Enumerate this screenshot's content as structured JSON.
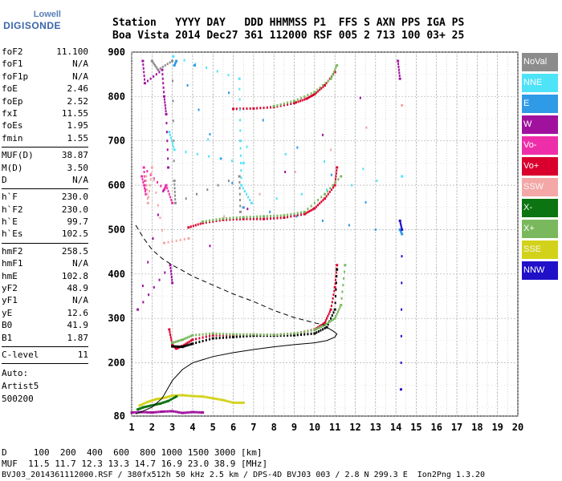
{
  "logo": {
    "line1": "Lowell",
    "line2": "DIGISONDE"
  },
  "header": {
    "row1": "Station   YYYY DAY   DDD HHMMSS P1  FFS S AXN PPS IGA PS",
    "row2": "Boa Vista 2014 Dec27 361 112000 RSF 005 2 713 100 03+ 25"
  },
  "parameters": [
    [
      {
        "k": "foF2",
        "v": "11.100"
      },
      {
        "k": "foF1",
        "v": "N/A"
      },
      {
        "k": "foF1p",
        "v": "N/A"
      },
      {
        "k": "foE",
        "v": "2.46"
      },
      {
        "k": "foEp",
        "v": "2.52"
      },
      {
        "k": "fxI",
        "v": "11.55"
      },
      {
        "k": "foEs",
        "v": "1.95"
      },
      {
        "k": "fmin",
        "v": "1.55"
      }
    ],
    [
      {
        "k": "MUF(D)",
        "v": "38.87"
      },
      {
        "k": "M(D)",
        "v": "3.50"
      },
      {
        "k": "D",
        "v": "N/A"
      }
    ],
    [
      {
        "k": "h`F",
        "v": "230.0"
      },
      {
        "k": "h`F2",
        "v": "230.0"
      },
      {
        "k": "h`E",
        "v": "99.7"
      },
      {
        "k": "h`Es",
        "v": "102.5"
      }
    ],
    [
      {
        "k": "hmF2",
        "v": "258.5"
      },
      {
        "k": "hmF1",
        "v": "N/A"
      },
      {
        "k": "hmE",
        "v": "102.8"
      },
      {
        "k": "yF2",
        "v": "48.9"
      },
      {
        "k": "yF1",
        "v": "N/A"
      },
      {
        "k": "yE",
        "v": "12.6"
      },
      {
        "k": "B0",
        "v": "41.9"
      },
      {
        "k": "B1",
        "v": "1.87"
      }
    ],
    [
      {
        "k": "C-level",
        "v": "11"
      }
    ]
  ],
  "auto": {
    "label": "Auto:",
    "line2": "Artist5",
    "line3": "500200"
  },
  "legend": [
    {
      "label": "NoVal",
      "color": "#8c8c8c"
    },
    {
      "label": "NNE",
      "color": "#4fe3f7"
    },
    {
      "label": "E",
      "color": "#2f9ae6"
    },
    {
      "label": "W",
      "color": "#a0129e"
    },
    {
      "label": "Vo-",
      "color": "#ee2ea8"
    },
    {
      "label": "Vo+",
      "color": "#d9002e"
    },
    {
      "label": "SSW",
      "color": "#f4a7a7"
    },
    {
      "label": "X-",
      "color": "#0c7410"
    },
    {
      "label": "X+",
      "color": "#7ab85e"
    },
    {
      "label": "SSE",
      "color": "#d2d21a"
    },
    {
      "label": "NNW",
      "color": "#2010c8"
    }
  ],
  "footer": {
    "line1": "D     100  200  400  600  800 1000 1500 3000 [km]",
    "line2": "MUF  11.5 11.7 12.3 13.3 14.7 16.9 23.0 38.9 [MHz]",
    "line3": "BVJ03_2014361112000.RSF / 380fx512h 50 kHz 2.5 km / DPS-4D BVJ03 003 / 2.8 N 299.3 E  Ion2Png 1.3.20"
  },
  "chart_data": {
    "type": "scatter",
    "xlim": [
      1,
      20
    ],
    "ylim": [
      80,
      900
    ],
    "x_ticks": [
      1,
      2,
      3,
      4,
      5,
      6,
      7,
      8,
      9,
      10,
      11,
      12,
      13,
      14,
      15,
      16,
      17,
      18,
      19,
      20
    ],
    "y_ticks": [
      80,
      200,
      300,
      400,
      500,
      600,
      700,
      800,
      900
    ],
    "series": [
      {
        "color": "#d9002e",
        "x": [
          2.85,
          3.0,
          3.2,
          3.5,
          4.0,
          5.0,
          6.0,
          7.0,
          8.0,
          9.0,
          10.0,
          10.5,
          10.8,
          11.0,
          11.1
        ],
        "y": [
          275,
          240,
          232,
          238,
          252,
          262,
          263,
          262,
          263,
          265,
          275,
          290,
          320,
          370,
          420
        ]
      },
      {
        "color": "#000000",
        "x": [
          3.0,
          3.5,
          4.0,
          5.0,
          6.0,
          7.0,
          8.0,
          9.0,
          10.0,
          10.6,
          11.0,
          11.1
        ],
        "y": [
          237,
          236,
          243,
          255,
          258,
          261,
          261,
          262,
          266,
          280,
          320,
          410
        ]
      },
      {
        "color": "#7ab85e",
        "x": [
          3.0,
          3.5,
          4.0,
          5.0,
          6.0,
          7.0,
          8.0,
          9.0,
          10.0,
          10.5,
          11.0,
          11.3,
          11.5
        ],
        "y": [
          245,
          252,
          262,
          266,
          264,
          264,
          263,
          266,
          274,
          285,
          300,
          330,
          420
        ]
      },
      {
        "color": "#d9002e",
        "x": [
          3.8,
          4.5,
          5.5,
          6.5,
          7.5,
          8.5,
          9.5,
          10.0,
          10.5,
          11.0,
          11.1
        ],
        "y": [
          505,
          515,
          522,
          524,
          524,
          527,
          535,
          548,
          570,
          600,
          640
        ]
      },
      {
        "color": "#7ab85e",
        "x": [
          4.5,
          5.5,
          6.5,
          7.5,
          8.5,
          9.5,
          10.5,
          11.3
        ],
        "y": [
          518,
          525,
          528,
          530,
          532,
          540,
          580,
          620
        ]
      },
      {
        "color": "#d9002e",
        "x": [
          6.0,
          7.0,
          8.0,
          9.0,
          9.6,
          10.0,
          10.5,
          11.0
        ],
        "y": [
          772,
          773,
          776,
          785,
          795,
          805,
          825,
          855
        ]
      },
      {
        "color": "#7ab85e",
        "x": [
          8.0,
          9.0,
          10.0,
          10.8,
          11.1
        ],
        "y": [
          778,
          790,
          810,
          840,
          870
        ]
      },
      {
        "color": "#ee2ea8",
        "x": [
          1.5,
          1.7,
          1.6,
          2.6,
          2.7,
          3.0
        ],
        "y": [
          620,
          580,
          640,
          590,
          600,
          560
        ]
      },
      {
        "color": "#f4a7a7",
        "x": [
          1.7,
          1.8,
          2.0,
          2.6,
          3.8,
          14.3
        ],
        "y": [
          620,
          560,
          640,
          470,
          480,
          780
        ]
      },
      {
        "color": "#a0129e",
        "x": [
          1.55,
          1.65,
          2.5,
          2.6,
          2.7,
          2.8,
          1.3,
          2.9,
          3.0,
          14.1,
          14.2
        ],
        "y": [
          880,
          830,
          860,
          800,
          760,
          640,
          320,
          420,
          380,
          880,
          840
        ]
      },
      {
        "color": "#4fe3f7",
        "x": [
          3.05,
          6.3,
          6.35,
          6.4,
          6.9,
          14.3,
          2.85,
          3.1,
          6.5
        ],
        "y": [
          890,
          840,
          700,
          600,
          560,
          620,
          720,
          680,
          650
        ]
      },
      {
        "color": "#2f9ae6",
        "x": [
          3.1,
          3.2,
          6.5,
          14.3,
          14.2,
          4.1
        ],
        "y": [
          870,
          880,
          550,
          490,
          500,
          870
        ]
      },
      {
        "color": "#8c8c8c",
        "x": [
          2.0,
          2.3,
          3.0,
          3.1,
          3.15,
          6.3,
          6.35
        ],
        "y": [
          880,
          860,
          880,
          610,
          560,
          620,
          540
        ]
      },
      {
        "color": "#2010c8",
        "x": [
          14.2,
          14.3,
          14.25
        ],
        "y": [
          520,
          500,
          140
        ]
      },
      {
        "color": "#d2d21a",
        "x": [
          1.4,
          1.8,
          2.2,
          2.6,
          3.0,
          3.5,
          4.0,
          4.5,
          5.0,
          5.5,
          6.0,
          6.5
        ],
        "y": [
          104,
          112,
          118,
          121,
          126,
          127,
          125,
          124,
          120,
          116,
          110,
          110
        ]
      },
      {
        "color": "#0c7410",
        "x": [
          1.3,
          1.6,
          2.0,
          2.4,
          2.8,
          3.2
        ],
        "y": [
          95,
          100,
          104,
          108,
          114,
          124
        ]
      },
      {
        "color": "#a0129e",
        "x": [
          1.0,
          1.5,
          2.0,
          2.5,
          3.0,
          3.5,
          4.0,
          4.5
        ],
        "y": [
          88,
          89,
          88,
          90,
          91,
          87,
          89,
          88
        ]
      }
    ],
    "virtual_height_dashed": {
      "x": [
        1.2,
        1.6,
        2.0,
        2.5,
        3.0,
        3.5,
        4.0,
        5.0,
        6.0,
        7.0,
        8.0,
        9.0,
        10.0,
        10.5
      ],
      "y": [
        510,
        480,
        455,
        435,
        420,
        408,
        395,
        375,
        355,
        338,
        318,
        302,
        290,
        285
      ]
    },
    "profile_line": {
      "x": [
        1.2,
        1.5,
        2.0,
        2.5,
        3.0,
        3.5,
        4.0,
        5.0,
        6.0,
        7.0,
        8.0,
        9.0,
        10.0,
        10.6,
        11.0,
        11.1,
        10.9,
        10.6
      ],
      "y": [
        85,
        90,
        100,
        120,
        160,
        185,
        200,
        214,
        223,
        230,
        236,
        241,
        245,
        250,
        258,
        265,
        272,
        280
      ]
    }
  }
}
